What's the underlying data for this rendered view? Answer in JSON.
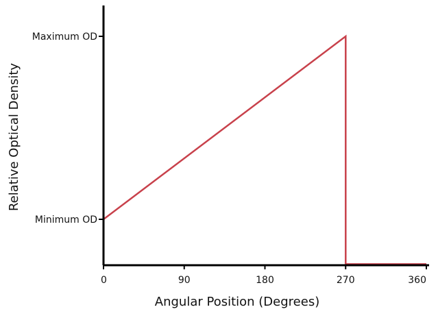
{
  "chart_data": {
    "type": "line",
    "title": "",
    "xlabel": "Angular Position (Degrees)",
    "ylabel": "Relative Optical Density",
    "xlim": [
      0,
      360
    ],
    "ylim": [
      -0.25,
      1.2
    ],
    "grid": false,
    "x_ticks": [
      {
        "value": 0,
        "label": "0"
      },
      {
        "value": 90,
        "label": "90"
      },
      {
        "value": 180,
        "label": "180"
      },
      {
        "value": 270,
        "label": "270"
      },
      {
        "value": 360,
        "label": "360"
      }
    ],
    "y_ticks": [
      {
        "value": 0,
        "label": "Minimum OD"
      },
      {
        "value": 1,
        "label": "Maximum OD"
      }
    ],
    "series": [
      {
        "color": "#c8414b",
        "x": [
          0,
          270,
          270,
          360
        ],
        "y": [
          0,
          1,
          -0.245,
          -0.245
        ]
      }
    ]
  }
}
